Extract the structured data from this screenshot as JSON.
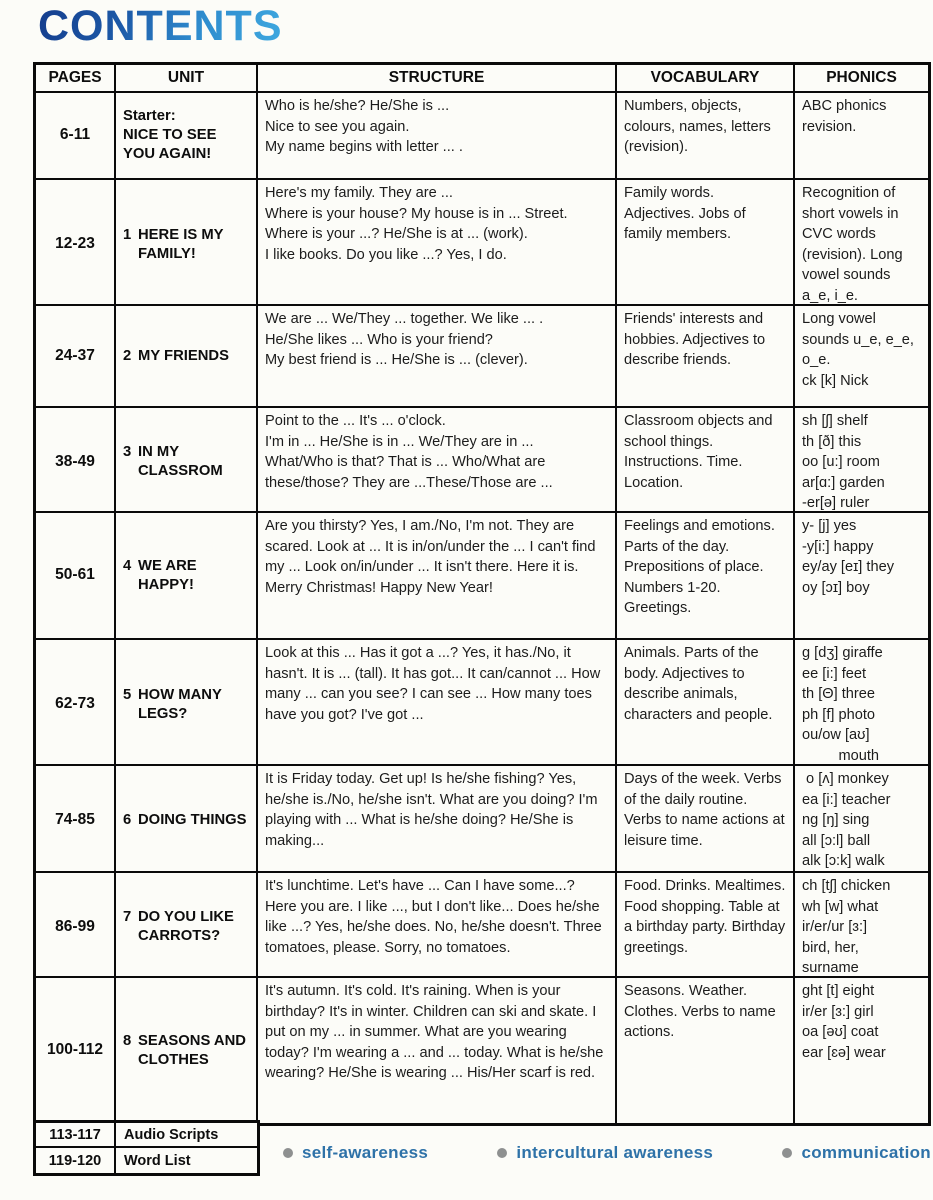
{
  "title": "CONTENTS",
  "colors": {
    "title_gradient_dark": "#143c8c",
    "title_gradient_light": "#3fa9e0",
    "legend_text": "#2e72a8",
    "legend_dot": "#8e9090",
    "table_border": "#0a0a0a"
  },
  "table": {
    "headers": [
      "PAGES",
      "UNIT",
      "STRUCTURE",
      "VOCABULARY",
      "PHONICS"
    ],
    "rows": [
      {
        "pages": "6-11",
        "unit_prefix": "Starter:",
        "unit_num": "",
        "unit_name": "NICE TO SEE YOU AGAIN!",
        "structure": "Who is he/she? He/She is ...\nNice to see you again.\nMy name begins with letter ... .",
        "vocabulary": "Numbers, objects, colours, names, letters (revision).",
        "phonics": "ABC phonics revision."
      },
      {
        "pages": "12-23",
        "unit_prefix": "",
        "unit_num": "1",
        "unit_name": "HERE IS MY FAMILY!",
        "structure": "Here's my family. They are ...\nWhere is your house? My house is in ... Street.\nWhere is your ...? He/She is at ... (work).\nI like books. Do you like ...? Yes, I do.",
        "vocabulary": "Family words. Adjectives. Jobs of family members.",
        "phonics": "Recognition of short vowels in CVC words (revision). Long vowel sounds a_e, i_e."
      },
      {
        "pages": "24-37",
        "unit_prefix": "",
        "unit_num": "2",
        "unit_name": "MY FRIENDS",
        "structure": "We are ... We/They ... together. We like ... .\nHe/She likes ... Who is your friend?\nMy best friend is ... He/She is ... (clever).",
        "vocabulary": "Friends' interests and hobbies. Adjectives to describe friends.",
        "phonics": "Long vowel sounds u_e, e_e, o_e.\nck [k] Nick"
      },
      {
        "pages": "38-49",
        "unit_prefix": "",
        "unit_num": "3",
        "unit_name": "IN MY CLASSROM",
        "structure": "Point to the ... It's ... o'clock.\nI'm in ... He/She is in ... We/They are in ...\nWhat/Who is that? That is ... Who/What are these/those? They are ...These/Those are ...",
        "vocabulary": "Classroom objects and school things. Instructions. Time. Location.",
        "phonics": "sh [ʃ] shelf\nth [ð] this\noo [u:] room\nar[ɑ:] garden\n-er[ə] ruler"
      },
      {
        "pages": "50-61",
        "unit_prefix": "",
        "unit_num": "4",
        "unit_name": "WE ARE HAPPY!",
        "structure": "Are you thirsty? Yes, I am./No, I'm not. They are scared. Look at ... It is in/on/under the ... I can't find my ... Look on/in/under ... It isn't there. Here it is. Merry Christmas! Happy New Year!",
        "vocabulary": "Feelings and emotions. Parts of the day. Prepositions of place. Numbers 1-20. Greetings.",
        "phonics": "y- [j] yes\n-y[i:] happy\ney/ay [eɪ] they\noy [ɔɪ] boy"
      },
      {
        "pages": "62-73",
        "unit_prefix": "",
        "unit_num": "5",
        "unit_name": "HOW MANY LEGS?",
        "structure": "Look at this ... Has it got a ...? Yes, it has./No, it hasn't. It is ... (tall). It has got... It can/cannot ... How many ... can you see? I can see ... How many toes have you got? I've got ...",
        "vocabulary": "Animals. Parts of the body. Adjectives to describe animals, characters and people.",
        "phonics": "g [dʒ] giraffe\nee [i:] feet\nth [Θ] three\nph [f] photo\nou/ow [aʊ]\n         mouth"
      },
      {
        "pages": "74-85",
        "unit_prefix": "",
        "unit_num": "6",
        "unit_name": "DOING THINGS",
        "structure": "It is Friday today. Get up! Is he/she fishing? Yes, he/she is./No, he/she isn't. What are you doing? I'm playing with ... What is he/she doing? He/She is making...",
        "vocabulary": "Days of the week. Verbs of the daily routine. Verbs to name actions at leisure time.",
        "phonics": " o [ʌ] monkey\nea [i:] teacher\nng [ŋ] sing\nall [ɔ:l] ball\nalk [ɔ:k] walk"
      },
      {
        "pages": "86-99",
        "unit_prefix": "",
        "unit_num": "7",
        "unit_name": "DO YOU LIKE CARROTS?",
        "structure": "It's lunchtime. Let's have ... Can I have some...? Here you are. I like ..., but I don't like... Does he/she like ...? Yes, he/she does. No, he/she doesn't. Three tomatoes, please. Sorry, no tomatoes.",
        "vocabulary": "Food. Drinks. Mealtimes. Food shopping. Table at a birthday party. Birthday greetings.",
        "phonics": "ch [tʃ] chicken\nwh [w] what\nir/er/ur [ɜ:]\nbird, her,\nsurname"
      },
      {
        "pages": "100-112",
        "unit_prefix": "",
        "unit_num": "8",
        "unit_name": "SEASONS AND CLOTHES",
        "structure": "It's autumn. It's cold. It's raining. When is your birthday? It's in winter. Children can ski and skate. I put on my ... in summer. What are you wearing today? I'm wearing a ... and ... today. What is he/she wearing? He/She is wearing ... His/Her scarf is red.",
        "vocabulary": "Seasons. Weather. Clothes. Verbs to name actions.",
        "phonics": "ght [t] eight\nir/er [ɜ:] girl\noa [əʊ] coat\near [ɛə] wear"
      }
    ]
  },
  "footer": {
    "rows": [
      {
        "pages": "113-117",
        "label": "Audio Scripts"
      },
      {
        "pages": "119-120",
        "label": "Word List"
      }
    ]
  },
  "legend": {
    "items": [
      "self-awareness",
      "intercultural awareness",
      "communication"
    ]
  }
}
